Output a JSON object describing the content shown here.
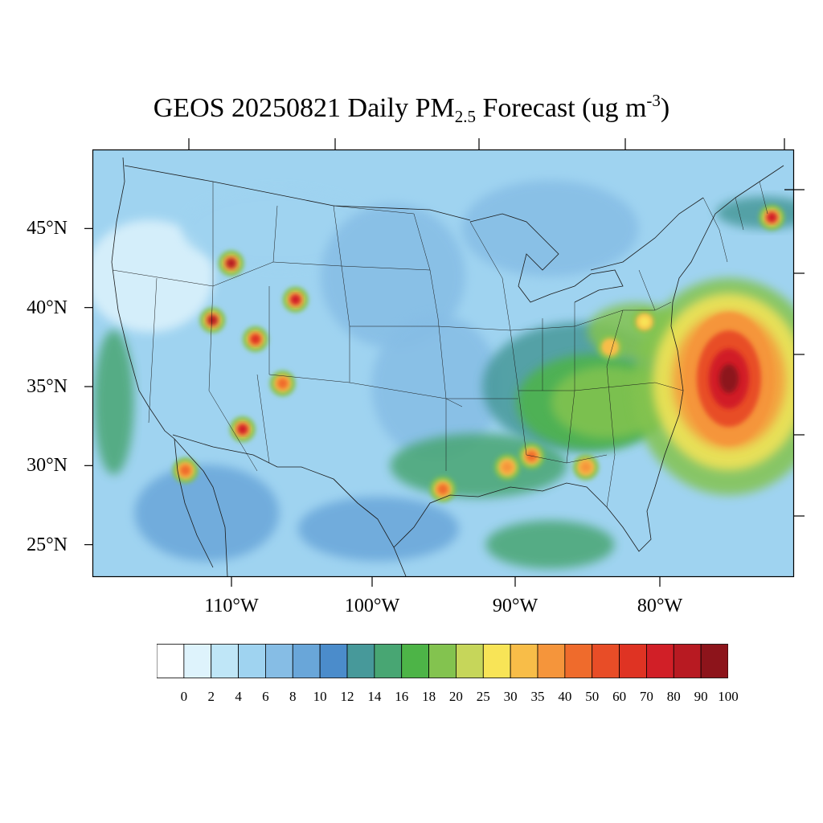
{
  "title": {
    "main": "GEOS 20250821 Daily PM",
    "sub": "2.5",
    "after": " Forecast (ug m",
    "sup": "-3",
    "close": ")"
  },
  "map": {
    "lat_labels": [
      {
        "lat": 45,
        "text": "45°N"
      },
      {
        "lat": 40,
        "text": "40°N"
      },
      {
        "lat": 35,
        "text": "35°N"
      },
      {
        "lat": 30,
        "text": "30°N"
      },
      {
        "lat": 25,
        "text": "25°N"
      }
    ],
    "lon_labels": [
      {
        "lon": -110,
        "text": "110°W"
      },
      {
        "lon": -100,
        "text": "100°W"
      },
      {
        "lon": -90,
        "text": "90°W"
      },
      {
        "lon": -80,
        "text": "80°W"
      }
    ]
  },
  "colorbar": {
    "labels": [
      "0",
      "2",
      "4",
      "6",
      "8",
      "10",
      "12",
      "14",
      "16",
      "18",
      "20",
      "25",
      "30",
      "35",
      "40",
      "50",
      "60",
      "70",
      "80",
      "90",
      "100"
    ],
    "colors": [
      "#ffffff",
      "#def3fc",
      "#bfe6f7",
      "#9fd3f0",
      "#86bde5",
      "#69a6d9",
      "#4b8ccb",
      "#47999a",
      "#48a673",
      "#4db447",
      "#83c34f",
      "#c6d65a",
      "#f8e457",
      "#f8bd48",
      "#f5953b",
      "#ef6b2c",
      "#e84d27",
      "#df3323",
      "#d11f27",
      "#b81a22",
      "#8d141b"
    ]
  },
  "chart_data": {
    "type": "heatmap",
    "variable": "Daily PM2.5 Forecast",
    "units": "ug m-3",
    "date": "20250821",
    "model": "GEOS",
    "extent": {
      "lon": [
        -120,
        -71
      ],
      "lat": [
        23,
        50
      ]
    },
    "levels": [
      0,
      2,
      4,
      6,
      8,
      10,
      12,
      14,
      16,
      18,
      20,
      25,
      30,
      35,
      40,
      50,
      60,
      70,
      80,
      90,
      100
    ],
    "hotspots": [
      {
        "lon": -75.5,
        "lat": 35.5,
        "value": 100
      },
      {
        "lon": -110.3,
        "lat": 42.8,
        "value": 90
      },
      {
        "lon": -111.6,
        "lat": 39.2,
        "value": 90
      },
      {
        "lon": -105.8,
        "lat": 40.5,
        "value": 80
      },
      {
        "lon": -108.6,
        "lat": 38.0,
        "value": 70
      },
      {
        "lon": -106.7,
        "lat": 35.2,
        "value": 50
      },
      {
        "lon": -109.5,
        "lat": 32.3,
        "value": 80
      },
      {
        "lon": -113.5,
        "lat": 29.7,
        "value": 50
      },
      {
        "lon": -72.5,
        "lat": 45.7,
        "value": 80
      },
      {
        "lon": -89.3,
        "lat": 30.6,
        "value": 50
      },
      {
        "lon": -91.0,
        "lat": 29.9,
        "value": 40
      },
      {
        "lon": -85.5,
        "lat": 29.9,
        "value": 40
      },
      {
        "lon": -95.5,
        "lat": 28.5,
        "value": 50
      },
      {
        "lon": -83.8,
        "lat": 37.5,
        "value": 35
      },
      {
        "lon": -81.4,
        "lat": 39.1,
        "value": 30
      }
    ]
  }
}
